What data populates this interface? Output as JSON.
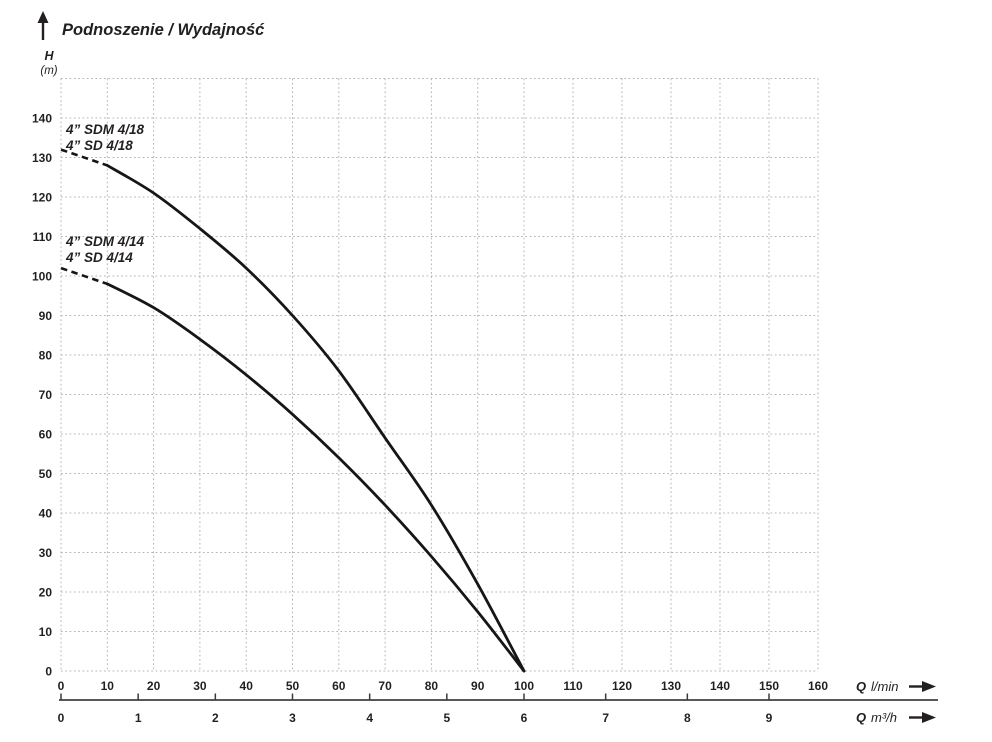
{
  "title": "Podnoszenie / Wydajność",
  "y_axis": {
    "symbol": "H",
    "unit": "(m)"
  },
  "x_axis_lmin": {
    "symbol": "Q",
    "unit": "l/min"
  },
  "x_axis_m3h": {
    "symbol": "Q",
    "unit": "m³/h"
  },
  "colors": {
    "curve": "#161616",
    "grid": "#b4b4b4",
    "axis_line": "#58595b",
    "tick": "#3a3a3c",
    "text": "#231f20"
  },
  "chart_data": {
    "type": "line",
    "title": "Podnoszenie / Wydajność",
    "ylabel": "H (m)",
    "xlabel_primary": "Q l/min",
    "xlabel_secondary": "Q m³/h",
    "grid": true,
    "grid_style": "dotted",
    "xlim_lmin": [
      0,
      160
    ],
    "ylim": [
      0,
      150
    ],
    "x_lmin": [
      0,
      10,
      20,
      30,
      40,
      50,
      60,
      70,
      80,
      90,
      100
    ],
    "series": [
      {
        "name": "4” SDM 4/18 / 4” SD 4/18",
        "label_lines": [
          "4” SDM 4/18",
          "4” SD 4/18"
        ],
        "values_H_m": [
          132,
          128,
          121,
          112,
          102,
          90,
          76,
          59,
          42,
          22,
          0
        ],
        "dashed_to_x": 10
      },
      {
        "name": "4” SDM 4/14 / 4” SD 4/14",
        "label_lines": [
          "4” SDM 4/14",
          "4” SD 4/14"
        ],
        "values_H_m": [
          102,
          98,
          92,
          84,
          75,
          65,
          54,
          42,
          29,
          15,
          0
        ],
        "dashed_to_x": 10
      }
    ],
    "x_ticks_lmin": [
      0,
      10,
      20,
      30,
      40,
      50,
      60,
      70,
      80,
      90,
      100,
      110,
      120,
      130,
      140,
      150,
      160
    ],
    "x_ticks_m3h": [
      0,
      1,
      2,
      3,
      4,
      5,
      6,
      7,
      8,
      9
    ],
    "y_ticks": [
      0,
      10,
      20,
      30,
      40,
      50,
      60,
      70,
      80,
      90,
      100,
      110,
      120,
      130,
      140
    ]
  }
}
